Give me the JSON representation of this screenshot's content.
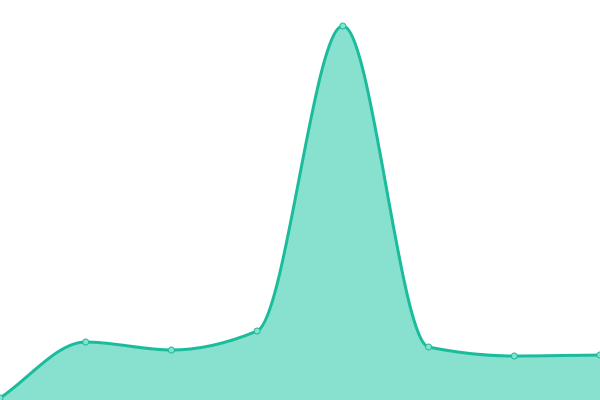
{
  "chart_data": {
    "type": "area",
    "title": "",
    "xlabel": "",
    "ylabel": "",
    "x": [
      0,
      1,
      2,
      3,
      4,
      5,
      6,
      7
    ],
    "values": [
      2,
      58,
      50,
      69,
      374,
      53,
      44,
      45
    ],
    "ylim": [
      0,
      400
    ],
    "grid": false,
    "smooth": true,
    "colors": {
      "line": "#1abc9c",
      "fill": "#88e0ce",
      "point_fill": "#88e0ce",
      "point_stroke": "#1abc9c"
    }
  }
}
